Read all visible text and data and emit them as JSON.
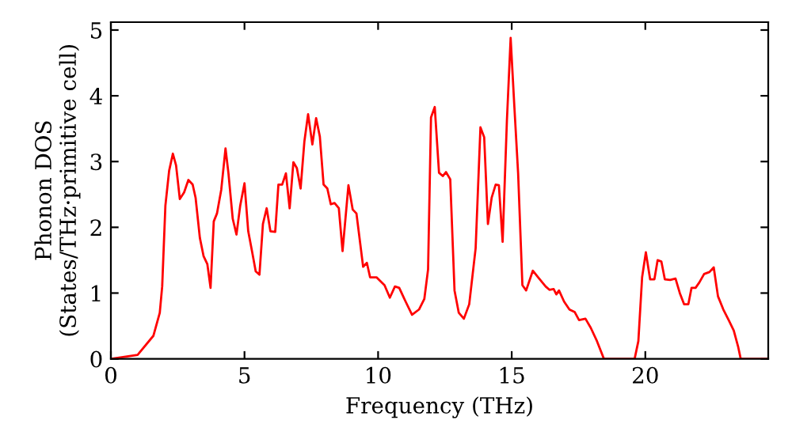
{
  "chart_data": {
    "type": "line",
    "xlabel": "Frequency (THz)",
    "ylabel": "Phonon DOS\n(States/THz·primitive cell)",
    "xlim": [
      0,
      24.6
    ],
    "ylim": [
      0,
      5.12
    ],
    "xticks": [
      0,
      5,
      10,
      15,
      20
    ],
    "yticks": [
      0,
      1,
      2,
      3,
      4,
      5
    ],
    "grid": false,
    "marker": "none",
    "line_style": "solid",
    "series": [
      {
        "color": "#ff0000",
        "x": [
          0,
          1.0,
          1.59,
          1.83,
          1.92,
          2.04,
          2.18,
          2.32,
          2.44,
          2.58,
          2.74,
          2.9,
          3.06,
          3.17,
          3.33,
          3.47,
          3.61,
          3.73,
          3.85,
          3.97,
          4.13,
          4.29,
          4.4,
          4.56,
          4.7,
          4.84,
          5.0,
          5.14,
          5.28,
          5.42,
          5.56,
          5.69,
          5.83,
          5.97,
          6.15,
          6.27,
          6.41,
          6.55,
          6.69,
          6.83,
          6.96,
          7.1,
          7.24,
          7.38,
          7.54,
          7.68,
          7.82,
          7.96,
          8.1,
          8.23,
          8.37,
          8.53,
          8.67,
          8.89,
          9.05,
          9.19,
          9.44,
          9.58,
          9.7,
          9.94,
          10.24,
          10.44,
          10.63,
          10.79,
          11.03,
          11.27,
          11.53,
          11.73,
          11.87,
          11.98,
          12.12,
          12.28,
          12.42,
          12.54,
          12.7,
          12.86,
          13.02,
          13.21,
          13.41,
          13.65,
          13.83,
          13.97,
          14.11,
          14.25,
          14.4,
          14.52,
          14.66,
          14.82,
          14.96,
          15.1,
          15.24,
          15.4,
          15.54,
          15.79,
          15.99,
          16.27,
          16.41,
          16.57,
          16.67,
          16.77,
          16.96,
          17.16,
          17.36,
          17.52,
          17.76,
          17.96,
          18.19,
          18.45,
          19.6,
          19.74,
          19.88,
          20.02,
          20.18,
          20.34,
          20.46,
          20.6,
          20.73,
          20.93,
          21.13,
          21.29,
          21.45,
          21.61,
          21.73,
          21.88,
          22.02,
          22.2,
          22.4,
          22.56,
          22.72,
          22.92,
          23.12,
          23.31,
          23.47,
          23.57,
          24.6
        ],
        "values": [
          0,
          0.06,
          0.35,
          0.7,
          1.1,
          2.33,
          2.86,
          3.12,
          2.94,
          2.43,
          2.53,
          2.72,
          2.65,
          2.45,
          1.84,
          1.56,
          1.44,
          1.08,
          2.09,
          2.21,
          2.57,
          3.2,
          2.82,
          2.13,
          1.89,
          2.33,
          2.67,
          1.94,
          1.64,
          1.33,
          1.28,
          2.05,
          2.29,
          1.94,
          1.93,
          2.65,
          2.65,
          2.82,
          2.29,
          2.99,
          2.9,
          2.59,
          3.3,
          3.72,
          3.26,
          3.66,
          3.38,
          2.65,
          2.59,
          2.35,
          2.37,
          2.29,
          1.64,
          2.64,
          2.27,
          2.21,
          1.4,
          1.46,
          1.24,
          1.24,
          1.12,
          0.93,
          1.1,
          1.08,
          0.87,
          0.67,
          0.75,
          0.91,
          1.36,
          3.67,
          3.83,
          2.83,
          2.78,
          2.84,
          2.73,
          1.04,
          0.7,
          0.61,
          0.83,
          1.68,
          3.52,
          3.37,
          2.05,
          2.45,
          2.65,
          2.64,
          1.78,
          3.62,
          4.88,
          3.83,
          2.82,
          1.12,
          1.04,
          1.34,
          1.24,
          1.1,
          1.05,
          1.06,
          0.98,
          1.04,
          0.87,
          0.75,
          0.71,
          0.59,
          0.61,
          0.47,
          0.27,
          0,
          0,
          0.27,
          1.24,
          1.62,
          1.21,
          1.21,
          1.5,
          1.48,
          1.21,
          1.2,
          1.22,
          1.0,
          0.83,
          0.83,
          1.08,
          1.08,
          1.16,
          1.29,
          1.32,
          1.39,
          0.95,
          0.75,
          0.59,
          0.43,
          0.19,
          0,
          0
        ]
      }
    ]
  }
}
